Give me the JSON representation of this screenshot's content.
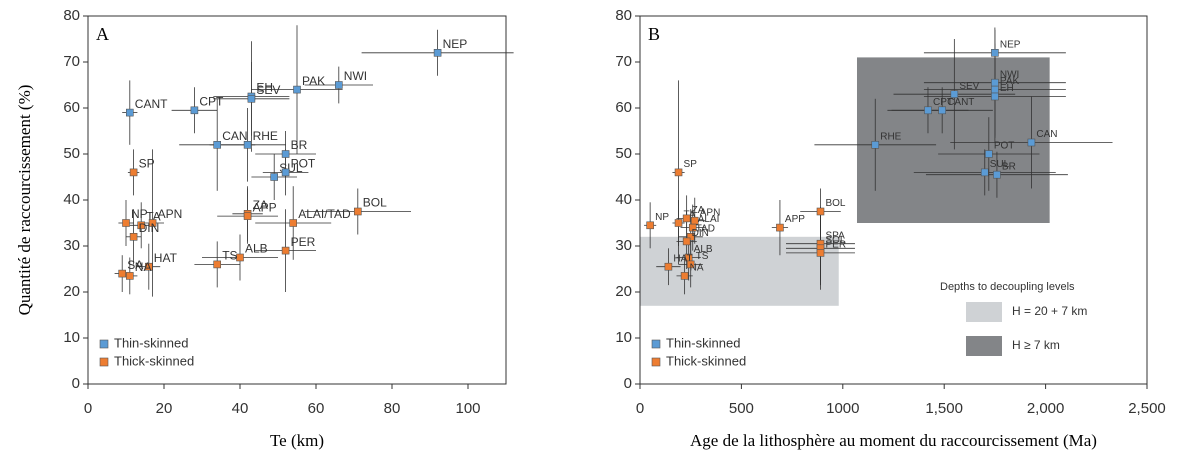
{
  "chart_data": [
    {
      "type": "scatter",
      "panel_label": "A",
      "xlabel": "Te (km)",
      "ylabel": "Quantité de raccourcissement (%)",
      "xlim": [
        0,
        110
      ],
      "ylim": [
        0,
        80
      ],
      "xticks": [
        0,
        20,
        40,
        60,
        80,
        100
      ],
      "yticks": [
        0,
        10,
        20,
        30,
        40,
        50,
        60,
        70,
        80
      ],
      "legend": "lower left",
      "series": [
        {
          "name": "Thin-skinned",
          "color": "#5b9bd5",
          "labels": [
            "CANT",
            "CPT",
            "EH",
            "SEV",
            "PAK",
            "NWI",
            "NEP",
            "RHE",
            "CAN",
            "BR",
            "SUL",
            "POT"
          ],
          "x": [
            11,
            28,
            43,
            43,
            55,
            66,
            92,
            42,
            34,
            52,
            49,
            52
          ],
          "y": [
            59,
            59.5,
            62.5,
            62,
            64,
            65,
            72,
            52,
            52,
            50,
            45,
            46
          ],
          "xerr": [
            2,
            6,
            10,
            10,
            12,
            9,
            20,
            10,
            10,
            8,
            6,
            6
          ],
          "yerr": [
            7,
            5,
            12,
            8,
            14,
            4,
            5,
            8,
            10,
            5,
            5,
            5
          ]
        },
        {
          "name": "Thick-skinned",
          "color": "#ed7d31",
          "labels": [
            "SP",
            "NP",
            "TA",
            "APN",
            "DIN",
            "HAT",
            "SA",
            "NA",
            "ZA",
            "APP",
            "ALAI/TAD",
            "BOL",
            "ALB",
            "TS",
            "PER"
          ],
          "x": [
            12,
            10,
            14,
            17,
            12,
            16,
            9,
            11,
            42,
            42,
            54,
            71,
            40,
            34,
            52
          ],
          "y": [
            46,
            35,
            34.5,
            35,
            32,
            25.5,
            24,
            23.5,
            37,
            36.5,
            35,
            37.5,
            27.5,
            26,
            29
          ],
          "xerr": [
            1.5,
            2,
            3,
            3,
            2,
            3,
            2,
            2,
            4,
            8,
            10,
            14,
            10,
            6,
            8
          ],
          "yerr": [
            5,
            5,
            5,
            16,
            6,
            5,
            4,
            4,
            6,
            6,
            8,
            5,
            5,
            5,
            9
          ]
        }
      ]
    },
    {
      "type": "scatter",
      "panel_label": "B",
      "xlabel": "Age de la lithosphère au moment du raccourcissement (Ma)",
      "xlim": [
        0,
        2500
      ],
      "ylim": [
        0,
        80
      ],
      "xticks": [
        0,
        500,
        1000,
        {
          "value": 1500,
          "label": "1,500"
        },
        {
          "value": 2000,
          "label": "2,000"
        },
        {
          "value": 2500,
          "label": "2,500"
        }
      ],
      "yticks": [
        0,
        10,
        20,
        30,
        40,
        50,
        60,
        70,
        80
      ],
      "legend": "lower left",
      "region_legend_title": "Depths to decoupling levels",
      "regions": [
        {
          "name": "H = 20 + 7 km",
          "color": "#cfd2d5",
          "x": [
            0,
            980
          ],
          "y": [
            17,
            32
          ]
        },
        {
          "name": "H ≥ 7 km",
          "color": "#838588",
          "x": [
            1070,
            2020
          ],
          "y": [
            35,
            71
          ]
        }
      ],
      "series": [
        {
          "name": "Thin-skinned",
          "color": "#5b9bd5",
          "labels": [
            "NEP",
            "NWI",
            "PAK",
            "EH",
            "SEV",
            "CPT",
            "CANT",
            "CAN",
            "RHE",
            "POT",
            "BR",
            "SUL"
          ],
          "x": [
            1750,
            1750,
            1750,
            1750,
            1550,
            1420,
            1490,
            1930,
            1160,
            1720,
            1760,
            1700
          ],
          "y": [
            72,
            65.5,
            64,
            62.5,
            63,
            59.5,
            59.5,
            52.5,
            52,
            50,
            45.5,
            46
          ],
          "xerr": [
            350,
            350,
            350,
            350,
            300,
            200,
            250,
            400,
            300,
            250,
            350,
            350
          ],
          "yerr": [
            5,
            12,
            10,
            10,
            12,
            5,
            5,
            10,
            10,
            8,
            5,
            5
          ]
        },
        {
          "name": "Thick-skinned",
          "color": "#ed7d31",
          "labels": [
            "SP",
            "NP",
            "TA",
            "ZA",
            "APN",
            "ALAI",
            "TAD",
            "DIN",
            "ALB",
            "HAT",
            "TS",
            "NA",
            "APP",
            "BOL",
            "SPA",
            "SOL",
            "PER"
          ],
          "x": [
            190,
            50,
            190,
            230,
            270,
            260,
            250,
            230,
            240,
            140,
            250,
            220,
            690,
            890,
            890,
            890,
            890
          ],
          "y": [
            46,
            34.5,
            35,
            36,
            35.5,
            34,
            32,
            31,
            27.5,
            25.5,
            26,
            23.5,
            34,
            37.5,
            30.5,
            29.5,
            28.5
          ],
          "xerr": [
            30,
            30,
            30,
            50,
            50,
            60,
            60,
            50,
            60,
            60,
            60,
            40,
            40,
            100,
            170,
            170,
            170
          ],
          "yerr": [
            20,
            5,
            5,
            5,
            5,
            5,
            6,
            6,
            5,
            4,
            5,
            4,
            6,
            5,
            8,
            8,
            8
          ]
        }
      ]
    }
  ]
}
